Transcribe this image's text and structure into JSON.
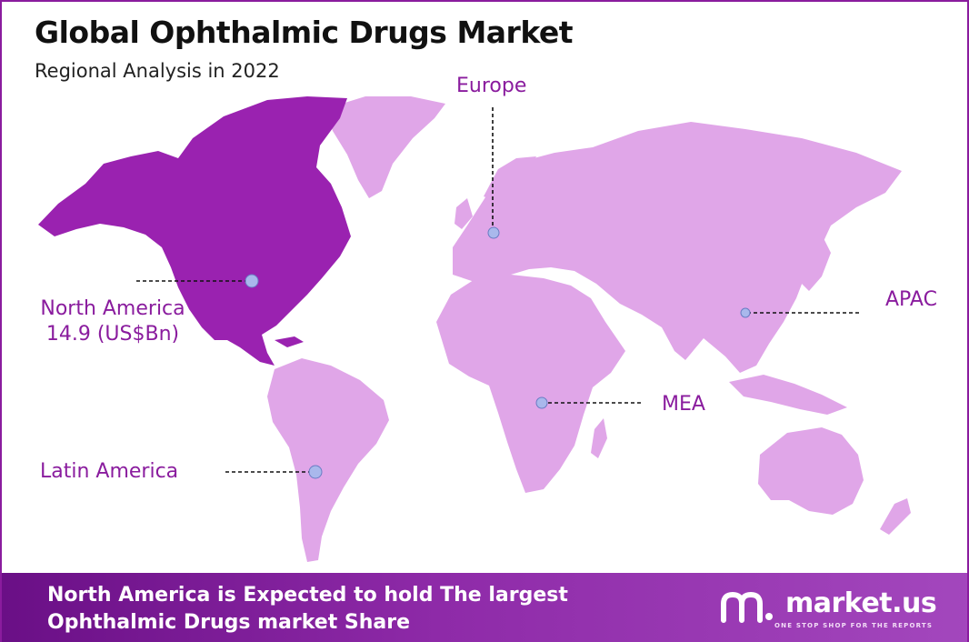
{
  "title": "Global Ophthalmic Drugs Market",
  "subtitle": "Regional Analysis in 2022",
  "colors": {
    "highlight_region": "#9a22b0",
    "other_regions": "#e0a6e8",
    "label_text": "#8a1c9e",
    "marker": "#a9b8ec"
  },
  "regions": [
    {
      "key": "north_america",
      "name": "North America",
      "value_text": "14.9 (US$Bn)",
      "highlighted": true
    },
    {
      "key": "europe",
      "name": "Europe",
      "highlighted": false
    },
    {
      "key": "apac",
      "name": "APAC",
      "highlighted": false
    },
    {
      "key": "mea",
      "name": "MEA",
      "highlighted": false
    },
    {
      "key": "latin_america",
      "name": "Latin America",
      "highlighted": false
    }
  ],
  "footer": {
    "line1": "North America is Expected to hold The largest",
    "line2": "Ophthalmic Drugs market Share"
  },
  "brand": {
    "name": "market.us",
    "tagline": "ONE STOP SHOP FOR THE REPORTS"
  }
}
